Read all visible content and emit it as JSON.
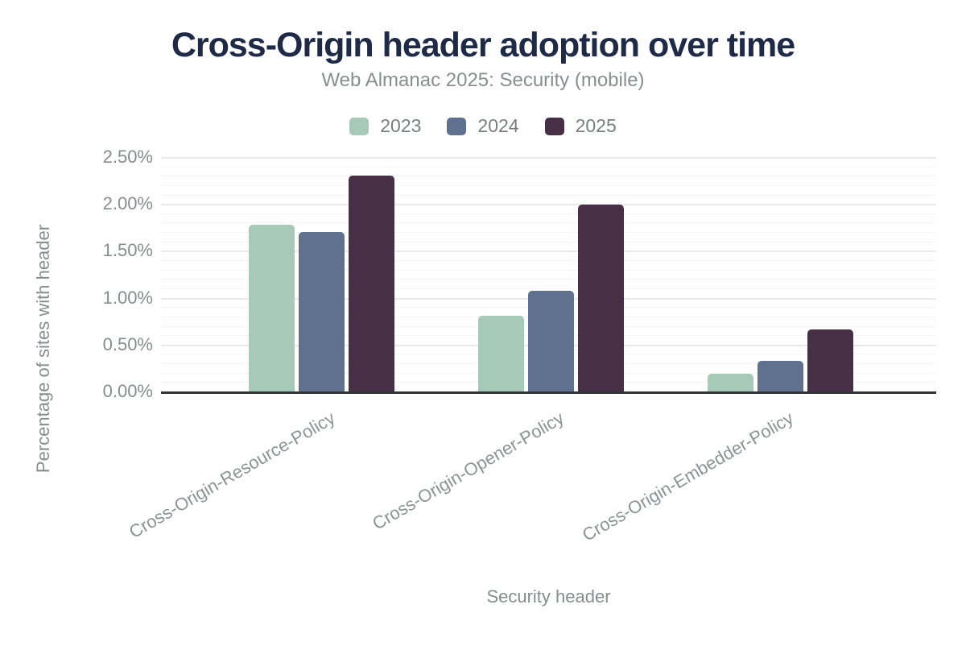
{
  "page": {
    "title": "Cross-Origin header adoption over time",
    "subtitle": "Web Almanac 2025: Security (mobile)"
  },
  "chart_data": {
    "type": "bar",
    "title": "Cross-Origin header adoption over time",
    "subtitle": "Web Almanac 2025: Security (mobile)",
    "xlabel": "Security header",
    "ylabel": "Percentage of sites with header",
    "categories": [
      "Cross-Origin-Resource-Policy",
      "Cross-Origin-Opener-Policy",
      "Cross-Origin-Embedder-Policy"
    ],
    "series": [
      {
        "name": "2023",
        "color": "#a7c9b8",
        "values": [
          1.78,
          0.81,
          0.19
        ]
      },
      {
        "name": "2024",
        "color": "#60718f",
        "values": [
          1.7,
          1.07,
          0.33
        ]
      },
      {
        "name": "2025",
        "color": "#472f45",
        "values": [
          2.3,
          1.99,
          0.66
        ]
      }
    ],
    "unit": "%",
    "ylim": [
      0,
      2.5
    ],
    "ytick_step": 0.5,
    "minor_gridline_step": 0.1,
    "ytick_labels": [
      "0.00%",
      "0.50%",
      "1.00%",
      "1.50%",
      "2.00%",
      "2.50%"
    ],
    "grid": true,
    "legend_position": "top"
  },
  "colors": {
    "background": "#ffffff",
    "title_text": "#1e2a46",
    "subtitle_text": "#8a8d8f",
    "legend_text": "#7a7d80",
    "axis_text": "#898c8f",
    "category_text": "#8f9295",
    "axis_line": "#303337",
    "grid_major": "#e9e9e9",
    "grid_minor": "#f5f5f5"
  }
}
